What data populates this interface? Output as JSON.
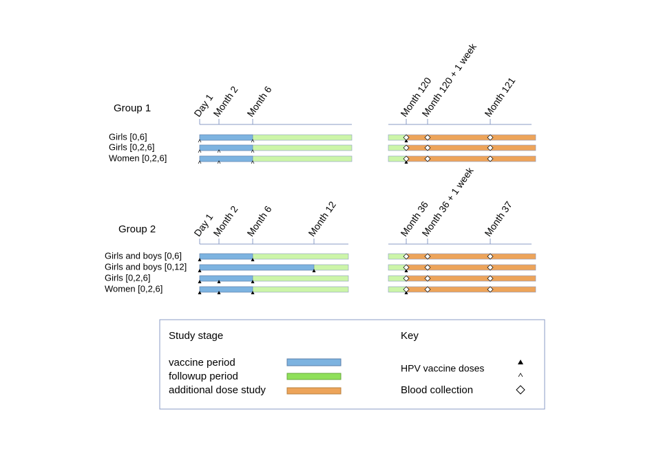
{
  "groups": [
    {
      "label": "Group 1",
      "ticks_left": [
        "Day 1",
        "Month 2",
        "Month 6"
      ],
      "ticks_right": [
        "Month 120",
        "Month 120 + 1 week",
        "Month 121"
      ],
      "rows": [
        "Girls [0,6]",
        "Girls [0,2,6]",
        "Women [0,2,6]"
      ]
    },
    {
      "label": "Group 2",
      "ticks_left": [
        "Day 1",
        "Month 2",
        "Month 6",
        "Month 12"
      ],
      "ticks_right": [
        "Month 36",
        "Month 36 + 1 week",
        "Month 37"
      ],
      "rows": [
        "Girls and boys [0,6]",
        "Girls and boys [0,12]",
        "Girls [0,2,6]",
        "Women [0,2,6]"
      ]
    }
  ],
  "legend": {
    "title": "Study stage",
    "items": [
      "vaccine period",
      "followup period",
      "additional dose study"
    ],
    "key_title": "Key",
    "key_items": [
      "HPV vaccine doses",
      "Blood collection"
    ]
  }
}
